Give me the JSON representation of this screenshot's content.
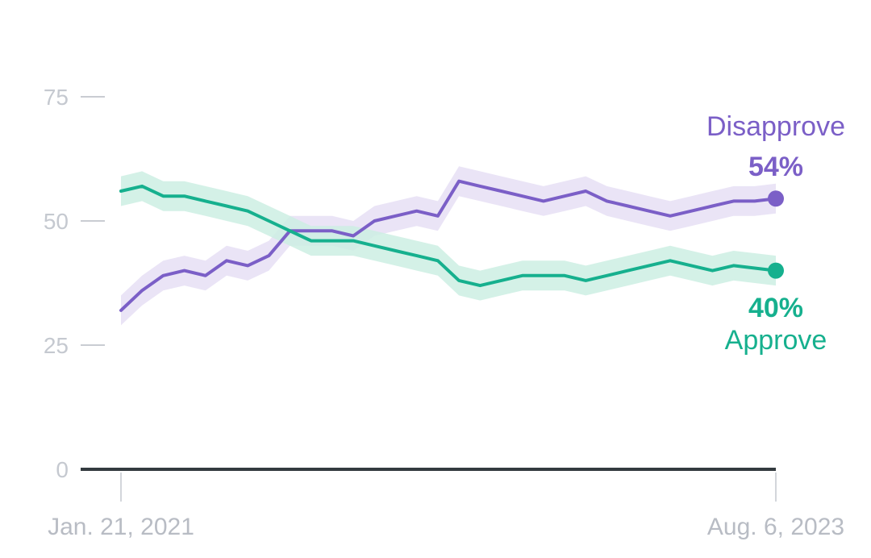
{
  "chart_data": {
    "type": "line",
    "title": "",
    "xlabel": "",
    "ylabel": "",
    "ylim": [
      0,
      75
    ],
    "yticks": [
      0,
      25,
      50,
      75
    ],
    "x_start_label": "Jan. 21, 2021",
    "x_end_label": "Aug. 6, 2023",
    "grid": false,
    "x": [
      "2021-01",
      "2021-02",
      "2021-03",
      "2021-04",
      "2021-05",
      "2021-06",
      "2021-07",
      "2021-08",
      "2021-09",
      "2021-10",
      "2021-11",
      "2021-12",
      "2022-01",
      "2022-02",
      "2022-03",
      "2022-04",
      "2022-05",
      "2022-06",
      "2022-07",
      "2022-08",
      "2022-09",
      "2022-10",
      "2022-11",
      "2022-12",
      "2023-01",
      "2023-02",
      "2023-03",
      "2023-04",
      "2023-05",
      "2023-06",
      "2023-07",
      "2023-08"
    ],
    "series": [
      {
        "name": "Disapprove",
        "color": "#7b5fc7",
        "band_color": "#e6dff5",
        "end_label": "54%",
        "values": [
          32,
          36,
          39,
          40,
          39,
          42,
          41,
          43,
          48,
          48,
          48,
          47,
          50,
          51,
          52,
          51,
          58,
          57,
          56,
          55,
          54,
          55,
          56,
          54,
          53,
          52,
          51,
          52,
          53,
          54,
          54,
          54.5
        ]
      },
      {
        "name": "Approve",
        "color": "#16b08e",
        "band_color": "#cdeee3",
        "end_label": "40%",
        "values": [
          56,
          57,
          55,
          55,
          54,
          53,
          52,
          50,
          48,
          46,
          46,
          46,
          45,
          44,
          43,
          42,
          38,
          37,
          38,
          39,
          39,
          39,
          38,
          39,
          40,
          41,
          42,
          41,
          40,
          41,
          40.5,
          40
        ]
      }
    ]
  }
}
